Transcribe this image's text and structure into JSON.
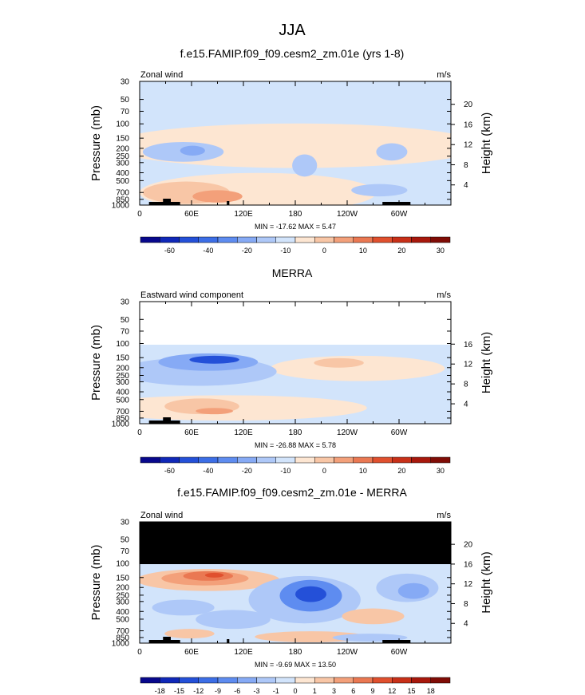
{
  "figure": {
    "title": "JJA"
  },
  "chart_data": [
    {
      "type": "heatmap",
      "title": "f.e15.FAMIP.f09_f09.cesm2_zm.01e (yrs 1-8)",
      "left_label": "Zonal wind",
      "units": "m/s",
      "ylabel": "Pressure (mb)",
      "y2label": "Height (km)",
      "x_ticks": [
        "0",
        "60E",
        "120E",
        "180",
        "120W",
        "60W"
      ],
      "y_ticks": [
        "30",
        "50",
        "70",
        "100",
        "150",
        "200",
        "250",
        "300",
        "400",
        "500",
        "700",
        "850",
        "1000"
      ],
      "y2_ticks": [
        "4",
        "8",
        "12",
        "16",
        "20"
      ],
      "stats": "MIN = -17.62  MAX =  5.47",
      "colorbar": {
        "labels": [
          "-60",
          "-40",
          "-20",
          "-10",
          "0",
          "10",
          "20",
          "30"
        ],
        "colors": [
          "#08088c",
          "#1028b8",
          "#2450d8",
          "#3c6ee6",
          "#5e8cf0",
          "#86aaf5",
          "#aec8f8",
          "#d2e4fb",
          "#fde6d2",
          "#f8c6a6",
          "#f3a07a",
          "#ea7852",
          "#e0502e",
          "#c83018",
          "#a8180c",
          "#800c06"
        ]
      }
    },
    {
      "type": "heatmap",
      "title": "MERRA",
      "left_label": "Eastward wind component",
      "units": "m/s",
      "ylabel": "Pressure (mb)",
      "y2label": "Height (km)",
      "x_ticks": [
        "0",
        "60E",
        "120E",
        "180",
        "120W",
        "60W"
      ],
      "y_ticks": [
        "30",
        "50",
        "70",
        "100",
        "150",
        "200",
        "250",
        "300",
        "400",
        "500",
        "700",
        "850",
        "1000"
      ],
      "y2_ticks": [
        "4",
        "8",
        "12",
        "16"
      ],
      "stats": "MIN = -26.88  MAX =  5.78",
      "colorbar": {
        "labels": [
          "-60",
          "-40",
          "-20",
          "-10",
          "0",
          "10",
          "20",
          "30"
        ],
        "colors": [
          "#08088c",
          "#1028b8",
          "#2450d8",
          "#3c6ee6",
          "#5e8cf0",
          "#86aaf5",
          "#aec8f8",
          "#d2e4fb",
          "#fde6d2",
          "#f8c6a6",
          "#f3a07a",
          "#ea7852",
          "#e0502e",
          "#c83018",
          "#a8180c",
          "#800c06"
        ]
      }
    },
    {
      "type": "heatmap",
      "title": "f.e15.FAMIP.f09_f09.cesm2_zm.01e - MERRA",
      "left_label": "Zonal wind",
      "units": "m/s",
      "ylabel": "Pressure (mb)",
      "y2label": "Height (km)",
      "x_ticks": [
        "0",
        "60E",
        "120E",
        "180",
        "120W",
        "60W"
      ],
      "y_ticks": [
        "30",
        "50",
        "70",
        "100",
        "150",
        "200",
        "250",
        "300",
        "400",
        "500",
        "700",
        "850",
        "1000"
      ],
      "y2_ticks": [
        "4",
        "8",
        "12",
        "16",
        "20"
      ],
      "stats": "MIN = -9.69  MAX = 13.50",
      "colorbar": {
        "labels": [
          "-18",
          "-15",
          "-12",
          "-9",
          "-6",
          "-3",
          "-1",
          "0",
          "1",
          "3",
          "6",
          "9",
          "12",
          "15",
          "18"
        ],
        "colors": [
          "#08088c",
          "#1028b8",
          "#2450d8",
          "#3c6ee6",
          "#5e8cf0",
          "#86aaf5",
          "#aec8f8",
          "#d2e4fb",
          "#fde6d2",
          "#f8c6a6",
          "#f3a07a",
          "#ea7852",
          "#e0502e",
          "#c83018",
          "#a8180c",
          "#800c06"
        ]
      }
    }
  ]
}
